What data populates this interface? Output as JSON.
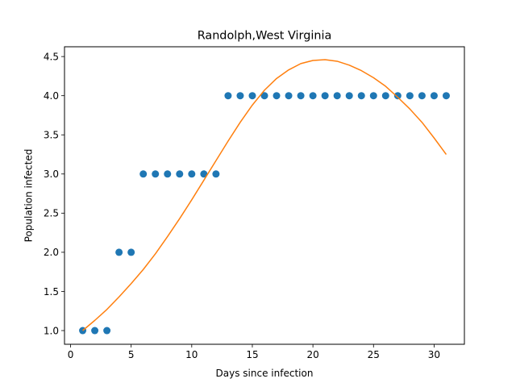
{
  "chart_data": {
    "type": "scatter",
    "title": "Randolph,West Virginia",
    "xlabel": "Days since infection",
    "ylabel": "Population infected",
    "xlim": [
      -0.5,
      32.5
    ],
    "ylim": [
      0.825,
      4.625
    ],
    "xticks": [
      0,
      5,
      10,
      15,
      20,
      25,
      30
    ],
    "xtick_labels": [
      "0",
      "5",
      "10",
      "15",
      "20",
      "25",
      "30"
    ],
    "yticks": [
      1.0,
      1.5,
      2.0,
      2.5,
      3.0,
      3.5,
      4.0,
      4.5
    ],
    "ytick_labels": [
      "1.0",
      "1.5",
      "2.0",
      "2.5",
      "3.0",
      "3.5",
      "4.0",
      "4.5"
    ],
    "grid": false,
    "legend": "none",
    "series": [
      {
        "kind": "scatter",
        "color": "#1f77b4",
        "x": [
          1,
          2,
          3,
          4,
          5,
          6,
          7,
          8,
          9,
          10,
          11,
          12,
          13,
          14,
          15,
          16,
          17,
          18,
          19,
          20,
          21,
          22,
          23,
          24,
          25,
          26,
          27,
          28,
          29,
          30,
          31
        ],
        "y": [
          1,
          1,
          1,
          2,
          2,
          3,
          3,
          3,
          3,
          3,
          3,
          3,
          4,
          4,
          4,
          4,
          4,
          4,
          4,
          4,
          4,
          4,
          4,
          4,
          4,
          4,
          4,
          4,
          4,
          4,
          4
        ]
      },
      {
        "kind": "line",
        "color": "#ff7f0e",
        "x": [
          1,
          2,
          3,
          4,
          5,
          6,
          7,
          8,
          9,
          10,
          11,
          12,
          13,
          14,
          15,
          16,
          17,
          18,
          19,
          20,
          21,
          22,
          23,
          24,
          25,
          26,
          27,
          28,
          29,
          30,
          31
        ],
        "y": [
          1.0,
          1.13,
          1.27,
          1.43,
          1.6,
          1.78,
          1.98,
          2.2,
          2.43,
          2.67,
          2.92,
          3.17,
          3.42,
          3.66,
          3.88,
          4.07,
          4.22,
          4.33,
          4.41,
          4.45,
          4.46,
          4.44,
          4.39,
          4.32,
          4.23,
          4.12,
          3.98,
          3.83,
          3.66,
          3.46,
          3.25
        ]
      }
    ]
  }
}
